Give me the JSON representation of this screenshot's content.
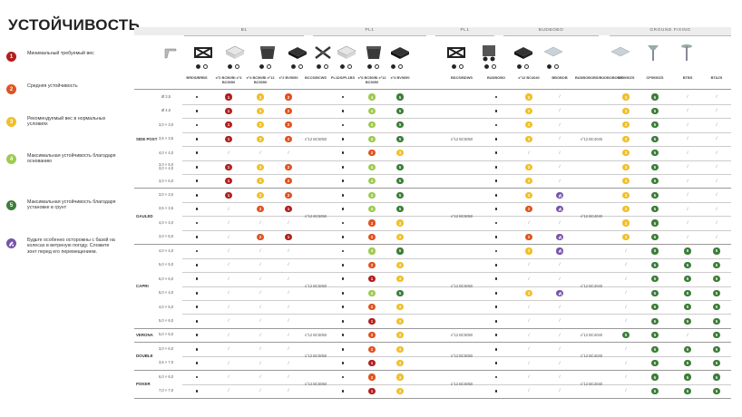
{
  "title": "УСТОЙЧИВОСТЬ",
  "colors": {
    "1": "#b21f1f",
    "2": "#e0531f",
    "3": "#f0c02a",
    "4": "#9ecb4e",
    "5": "#3e7d3a",
    "6": "#7755a8"
  },
  "legend": [
    {
      "code": "1",
      "num": "1",
      "text": "Минимальный требуемый вес"
    },
    {
      "code": "2",
      "num": "2",
      "text": "Средняя устойчивость"
    },
    {
      "code": "3",
      "num": "3",
      "text": "Рекомендуемый вес в нормальных условиях"
    },
    {
      "code": "4",
      "num": "4",
      "text": "Максимальная устойчивость благодаря основанию"
    },
    {
      "code": "5",
      "num": "5",
      "text": "Максимальная устойчивость благодаря установке в грунт"
    },
    {
      "code": "6",
      "num": "",
      "text": "Будьте особенно осторожны с базой на колесах в ветреную погоду. Сложите зонт перед его перемещением."
    }
  ],
  "groups": [
    {
      "label": "B1",
      "from": 5,
      "to": 9
    },
    {
      "label": "PL1",
      "from": 10,
      "to": 13
    },
    {
      "label": "PL1",
      "from": 14,
      "to": 14
    },
    {
      "label": "BUDBOBO",
      "from": 15,
      "to": 18
    },
    {
      "label": "GROUND FIXING",
      "from": 19,
      "to": 22
    }
  ],
  "images": [
    "bracket-icon",
    "steel-frame-base-icon",
    "concrete-slab-base-icon",
    "black-planter-base-icon",
    "granite-slab-base-icon",
    "cross-base-icon",
    "concrete-slab-base-icon",
    "black-planter-base-icon",
    "granite-slab-base-icon",
    "steel-frame-base-icon",
    "wheeled-base-icon",
    "granite-slab-base-icon",
    "ground-plate-icon",
    "ground-plate-icon",
    "ground-spike-icon",
    "ground-screw-icon"
  ],
  "image_cols": [
    4,
    5,
    6,
    7,
    8,
    10,
    11,
    12,
    14,
    15,
    16,
    18,
    19,
    20,
    21,
    22
  ],
  "toggle_cols": [
    5,
    6,
    7,
    8,
    10,
    11,
    12,
    14,
    15,
    16
  ],
  "columns": [
    "BRDS/BRBS",
    "x°2 BC50/BI x°4 BC5050",
    "x°4 BC50/BI x°12 BC5050",
    "x°2 BV5050",
    "BCCS/BCWS",
    "PL1DS/PL1BS",
    "x°6 BC50/BI x°12 BC5050",
    "x°4 BV5050",
    "BDCS/BDWS",
    "BUDBOBO",
    "x°12 BC4040",
    "BBOBOB",
    "BUDBOBOBS/BUDBOBOBB",
    "CP5050ZS",
    "CP5050ZS",
    "BTBS",
    "BTAZS"
  ],
  "models": [
    {
      "name": "SIDE POST",
      "rows": [
        {
          "size": "Ø 3,5",
          "cells": [
            "d",
            "1",
            "3",
            "2",
            "d",
            "4",
            "5",
            "d",
            "3",
            "/",
            "3",
            "5",
            "/",
            "/"
          ]
        },
        {
          "size": "Ø 4,0",
          "cells": [
            "d",
            "1",
            "3",
            "2",
            "d",
            "4",
            "5",
            "d",
            "3",
            "/",
            "3",
            "5",
            "/",
            "/"
          ]
        },
        {
          "size": "3,0 × 3,0",
          "cells": [
            "d",
            "1",
            "3",
            "2",
            "d",
            "4",
            "5",
            "d",
            "3",
            "/",
            "3",
            "5",
            "/",
            "/"
          ]
        },
        {
          "size": "3,5 × 3,5",
          "cells": [
            "d",
            "1",
            "3",
            "2",
            "d",
            "4",
            "5",
            "d",
            "3",
            "/",
            "3",
            "5",
            "/",
            "/"
          ]
        },
        {
          "size": "4,0 × 4,0",
          "cells": [
            "d",
            "/",
            "/",
            "/",
            "d",
            "2",
            "3",
            "d",
            "/",
            "/",
            "3",
            "5",
            "/",
            "/"
          ]
        },
        {
          "size": "3,0 × 5,0\n3,0 × 4,0",
          "cells": [
            "d",
            "1",
            "3",
            "2",
            "d",
            "4",
            "5",
            "d",
            "3",
            "/",
            "3",
            "5",
            "/",
            "/"
          ]
        },
        {
          "size": "3,0 × 6,0",
          "cells": [
            "d",
            "1",
            "3",
            "2",
            "d",
            "4",
            "5",
            "d",
            "3",
            "/",
            "3",
            "5",
            "/",
            "/"
          ]
        }
      ]
    },
    {
      "name": "GAULED",
      "rows": [
        {
          "size": "3,0 × 3,0",
          "cells": [
            "d",
            "1",
            "3",
            "2",
            "d",
            "4",
            "5",
            "d",
            "3",
            "6",
            "3",
            "5",
            "/",
            "/"
          ]
        },
        {
          "size": "3,5 × 3,5",
          "cells": [
            "d",
            "/",
            "2",
            "1",
            "d",
            "4",
            "5",
            "d",
            "2",
            "6",
            "3",
            "5",
            "/",
            "/"
          ]
        },
        {
          "size": "4,0 × 4,0",
          "cells": [
            "d",
            "/",
            "/",
            "/",
            "d",
            "2",
            "3",
            "d",
            "/",
            "/",
            "3",
            "5",
            "/",
            "/"
          ]
        },
        {
          "size": "3,0 × 5,0",
          "cells": [
            "d",
            "/",
            "2",
            "1",
            "d",
            "2",
            "3",
            "d",
            "2",
            "6",
            "3",
            "5",
            "/",
            "/"
          ]
        }
      ]
    },
    {
      "name": "CAPRI",
      "rows": [
        {
          "size": "4,0 × 4,0",
          "cells": [
            "d",
            "/",
            "/",
            "/",
            "d",
            "4",
            "5",
            "d",
            "3",
            "6",
            "/",
            "5",
            "5",
            "5"
          ]
        },
        {
          "size": "5,0 × 5,0",
          "cells": [
            "d",
            "/",
            "/",
            "/",
            "d",
            "2",
            "3",
            "d",
            "/",
            "/",
            "/",
            "5",
            "5",
            "5"
          ]
        },
        {
          "size": "6,0 × 6,0",
          "cells": [
            "d",
            "/",
            "/",
            "/",
            "d",
            "1",
            "3",
            "d",
            "/",
            "/",
            "/",
            "5",
            "5",
            "5"
          ]
        },
        {
          "size": "5,0 × 4,0",
          "cells": [
            "d",
            "/",
            "/",
            "/",
            "d",
            "4",
            "5",
            "d",
            "3",
            "6",
            "/",
            "5",
            "5",
            "5"
          ]
        },
        {
          "size": "4,0 × 5,0",
          "cells": [
            "d",
            "/",
            "/",
            "/",
            "d",
            "2",
            "3",
            "d",
            "/",
            "/",
            "/",
            "5",
            "5",
            "5"
          ]
        },
        {
          "size": "5,0 × 6,0",
          "cells": [
            "d",
            "/",
            "/",
            "/",
            "d",
            "1",
            "3",
            "d",
            "/",
            "/",
            "/",
            "5",
            "5",
            "5"
          ]
        }
      ]
    },
    {
      "name": "VERONA",
      "rows": [
        {
          "size": "5,0 × 5,0",
          "cells": [
            "d",
            "/",
            "/",
            "/",
            "d",
            "2",
            "3",
            "d",
            "/",
            "/",
            "5",
            "5",
            "/",
            "5"
          ]
        }
      ]
    },
    {
      "name": "DOUBLE",
      "rows": [
        {
          "size": "3,0 × 6,0",
          "cells": [
            "d",
            "/",
            "/",
            "/",
            "d",
            "2",
            "3",
            "d",
            "/",
            "/",
            "/",
            "5",
            "5",
            "5"
          ]
        },
        {
          "size": "3,5 × 7,0",
          "cells": [
            "d",
            "/",
            "/",
            "/",
            "d",
            "1",
            "3",
            "d",
            "/",
            "/",
            "/",
            "5",
            "5",
            "5"
          ]
        }
      ]
    },
    {
      "name": "POKER",
      "rows": [
        {
          "size": "6,0 × 6,0",
          "cells": [
            "d",
            "/",
            "/",
            "/",
            "d",
            "2",
            "3",
            "d",
            "/",
            "/",
            "/",
            "5",
            "5",
            "5"
          ]
        },
        {
          "size": "7,0 × 7,0",
          "cells": [
            "d",
            "/",
            "/",
            "/",
            "d",
            "1",
            "3",
            "d",
            "/",
            "/",
            "/",
            "5",
            "5",
            "5"
          ]
        }
      ]
    }
  ],
  "reference_labels": [
    "x°12 BC5050",
    "x°12 BC5050",
    "x°12 BC4040"
  ]
}
